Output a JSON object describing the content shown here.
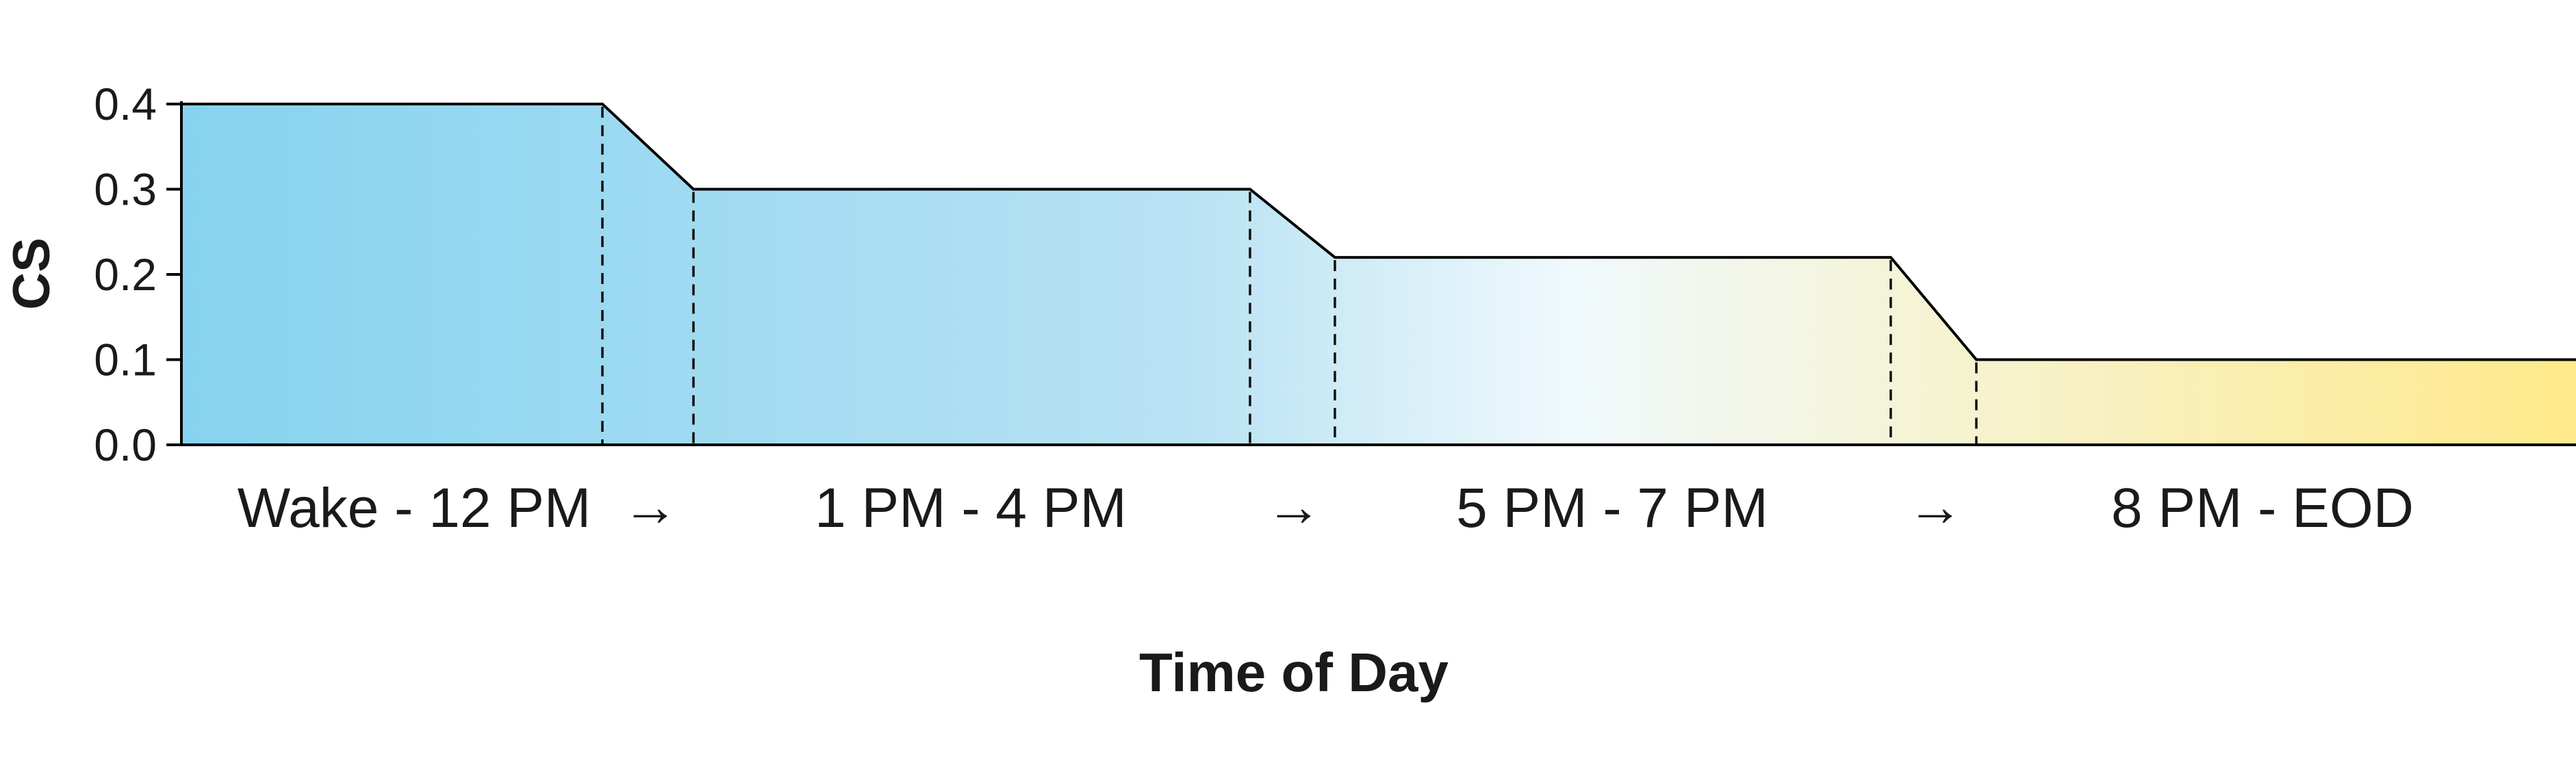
{
  "chart_data": {
    "type": "area",
    "xlabel": "Time of Day",
    "ylabel": "CS",
    "ylim": [
      0,
      0.4
    ],
    "yticks": [
      "0.0",
      "0.1",
      "0.2",
      "0.3",
      "0.4"
    ],
    "grid": false,
    "categories": [
      "Wake - 12 PM",
      "1 PM - 4 PM",
      "5 PM - 7 PM",
      "8 PM - EOD"
    ],
    "transition_marker": "→",
    "transitions_between_categories": 3,
    "values": [
      0.4,
      0.3,
      0.22,
      0.1
    ],
    "fill_gradient": [
      "#86d3f0",
      "#b8e2f3",
      "#f0f9fd",
      "#ffe98a"
    ],
    "line_color": "#000000",
    "dividers": "dashed"
  }
}
